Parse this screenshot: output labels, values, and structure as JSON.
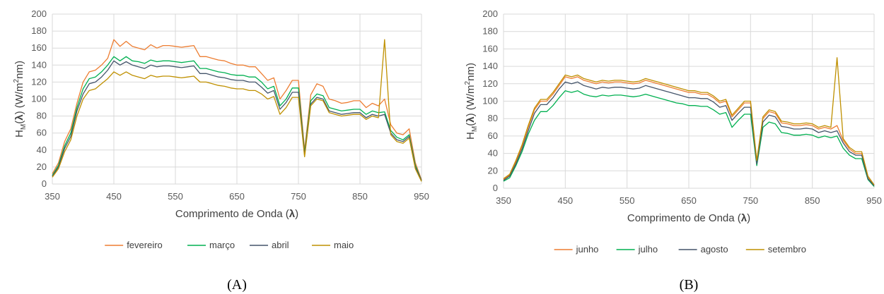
{
  "chart_data": [
    {
      "type": "line",
      "caption": "(A)",
      "xlabel": "Comprimento de Onda (λ)",
      "ylabel": "HM(λ) (W/m2nm)",
      "xlim": [
        350,
        950
      ],
      "ylim": [
        0,
        200
      ],
      "x_ticks": [
        350,
        450,
        550,
        650,
        750,
        850,
        950
      ],
      "y_ticks": [
        0,
        20,
        40,
        60,
        80,
        100,
        120,
        140,
        160,
        180,
        200
      ],
      "grid": true,
      "legend_position": "bottom",
      "x": [
        350,
        360,
        370,
        380,
        390,
        400,
        410,
        420,
        430,
        440,
        450,
        460,
        470,
        480,
        490,
        500,
        510,
        520,
        530,
        540,
        550,
        560,
        570,
        580,
        590,
        600,
        610,
        620,
        630,
        640,
        650,
        660,
        670,
        680,
        690,
        700,
        710,
        720,
        730,
        740,
        750,
        760,
        770,
        780,
        790,
        800,
        810,
        820,
        830,
        840,
        850,
        860,
        870,
        880,
        890,
        900,
        910,
        920,
        930,
        940,
        950
      ],
      "series": [
        {
          "name": "fevereiro",
          "color": "#ed7d31",
          "values": [
            12,
            25,
            50,
            65,
            95,
            120,
            132,
            134,
            140,
            148,
            170,
            162,
            168,
            162,
            160,
            158,
            164,
            160,
            163,
            163,
            162,
            161,
            162,
            163,
            150,
            150,
            148,
            146,
            145,
            142,
            140,
            140,
            138,
            138,
            130,
            122,
            125,
            100,
            110,
            122,
            122,
            40,
            105,
            118,
            115,
            100,
            98,
            95,
            96,
            98,
            98,
            90,
            95,
            92,
            100,
            70,
            60,
            58,
            65,
            25,
            5
          ]
        },
        {
          "name": "março",
          "color": "#00b050",
          "values": [
            10,
            22,
            45,
            60,
            90,
            112,
            124,
            126,
            132,
            140,
            150,
            145,
            150,
            145,
            144,
            142,
            146,
            144,
            145,
            145,
            144,
            143,
            144,
            145,
            136,
            136,
            134,
            132,
            131,
            129,
            128,
            128,
            126,
            126,
            120,
            112,
            115,
            92,
            100,
            113,
            113,
            36,
            98,
            106,
            104,
            90,
            88,
            86,
            87,
            88,
            88,
            82,
            86,
            84,
            85,
            63,
            55,
            52,
            58,
            22,
            4
          ]
        },
        {
          "name": "abril",
          "color": "#44546a",
          "values": [
            9,
            20,
            42,
            56,
            86,
            106,
            118,
            120,
            126,
            134,
            145,
            140,
            144,
            140,
            138,
            136,
            140,
            138,
            139,
            139,
            138,
            137,
            138,
            139,
            130,
            130,
            128,
            126,
            125,
            123,
            122,
            122,
            120,
            120,
            114,
            107,
            110,
            88,
            96,
            108,
            108,
            34,
            94,
            102,
            100,
            86,
            84,
            82,
            83,
            84,
            84,
            78,
            82,
            80,
            82,
            60,
            52,
            50,
            56,
            20,
            4
          ]
        },
        {
          "name": "maio",
          "color": "#bf9000",
          "values": [
            8,
            18,
            38,
            52,
            80,
            100,
            110,
            112,
            118,
            124,
            132,
            128,
            132,
            128,
            126,
            124,
            128,
            126,
            127,
            127,
            126,
            125,
            126,
            127,
            120,
            120,
            118,
            116,
            115,
            113,
            112,
            112,
            110,
            110,
            106,
            100,
            103,
            82,
            90,
            102,
            102,
            32,
            92,
            100,
            98,
            84,
            82,
            80,
            81,
            82,
            82,
            76,
            80,
            78,
            170,
            58,
            50,
            48,
            54,
            18,
            3
          ]
        }
      ]
    },
    {
      "type": "line",
      "caption": "(B)",
      "xlabel": "Comprimento de Onda (λ)",
      "ylabel": "HM(λ) (W/m2nm)",
      "xlim": [
        350,
        950
      ],
      "ylim": [
        0,
        200
      ],
      "x_ticks": [
        350,
        450,
        550,
        650,
        750,
        850,
        950
      ],
      "y_ticks": [
        0,
        20,
        40,
        60,
        80,
        100,
        120,
        140,
        160,
        180,
        200
      ],
      "grid": true,
      "legend_position": "bottom",
      "x": [
        350,
        360,
        370,
        380,
        390,
        400,
        410,
        420,
        430,
        440,
        450,
        460,
        470,
        480,
        490,
        500,
        510,
        520,
        530,
        540,
        550,
        560,
        570,
        580,
        590,
        600,
        610,
        620,
        630,
        640,
        650,
        660,
        670,
        680,
        690,
        700,
        710,
        720,
        730,
        740,
        750,
        760,
        770,
        780,
        790,
        800,
        810,
        820,
        830,
        840,
        850,
        860,
        870,
        880,
        890,
        900,
        910,
        920,
        930,
        940,
        950
      ],
      "series": [
        {
          "name": "junho",
          "color": "#ed7d31",
          "values": [
            10,
            15,
            30,
            48,
            70,
            90,
            100,
            100,
            108,
            118,
            128,
            126,
            128,
            124,
            122,
            120,
            122,
            121,
            122,
            122,
            121,
            120,
            121,
            124,
            122,
            120,
            118,
            116,
            114,
            112,
            110,
            110,
            108,
            108,
            104,
            98,
            100,
            82,
            90,
            98,
            98,
            30,
            80,
            88,
            86,
            75,
            74,
            72,
            72,
            73,
            72,
            68,
            70,
            68,
            72,
            55,
            45,
            40,
            40,
            12,
            3
          ]
        },
        {
          "name": "julho",
          "color": "#00b050",
          "values": [
            8,
            12,
            26,
            42,
            62,
            78,
            88,
            88,
            95,
            104,
            112,
            110,
            112,
            108,
            106,
            105,
            107,
            106,
            107,
            107,
            106,
            105,
            106,
            108,
            106,
            104,
            102,
            100,
            98,
            97,
            95,
            95,
            94,
            94,
            90,
            85,
            87,
            70,
            78,
            85,
            85,
            26,
            70,
            76,
            74,
            64,
            63,
            61,
            61,
            62,
            61,
            58,
            60,
            58,
            60,
            46,
            38,
            34,
            34,
            10,
            2
          ]
        },
        {
          "name": "agosto",
          "color": "#44546a",
          "values": [
            9,
            14,
            28,
            45,
            66,
            86,
            96,
            96,
            104,
            114,
            122,
            120,
            122,
            118,
            116,
            114,
            116,
            115,
            116,
            116,
            115,
            114,
            115,
            118,
            116,
            114,
            112,
            110,
            108,
            106,
            104,
            104,
            103,
            103,
            99,
            93,
            95,
            78,
            86,
            93,
            93,
            28,
            76,
            84,
            82,
            71,
            70,
            68,
            68,
            69,
            68,
            64,
            66,
            64,
            66,
            52,
            42,
            38,
            38,
            11,
            3
          ]
        },
        {
          "name": "setembro",
          "color": "#bf9000",
          "values": [
            11,
            16,
            32,
            50,
            72,
            92,
            102,
            102,
            110,
            120,
            130,
            128,
            130,
            126,
            124,
            122,
            124,
            123,
            124,
            124,
            123,
            122,
            123,
            126,
            124,
            122,
            120,
            118,
            116,
            114,
            112,
            112,
            110,
            110,
            106,
            100,
            102,
            84,
            92,
            100,
            100,
            32,
            82,
            90,
            88,
            77,
            76,
            74,
            74,
            75,
            74,
            70,
            72,
            70,
            150,
            57,
            47,
            42,
            42,
            14,
            4
          ]
        }
      ]
    }
  ]
}
